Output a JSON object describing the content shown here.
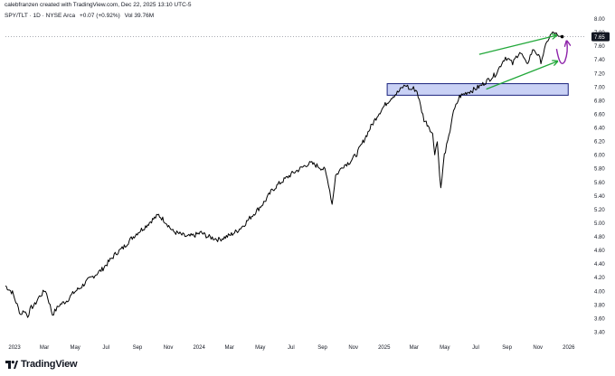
{
  "header": {
    "credit": "calebfranzen created with TradingView.com, Dec 22, 2025 13:10 UTC-5"
  },
  "legend": {
    "symbol": "SPY/TLT · 1D · NYSE Arca",
    "change": "+0.07 (+0.92%)",
    "volume": "Vol 39.76M"
  },
  "brand": {
    "name": "TradingView"
  },
  "colors": {
    "price_line": "#000000",
    "last_price_badge": "#131722",
    "channel_arrows": "#22a83a",
    "curve_arrow": "#8e24aa",
    "zone_fill": "#c9d1f5",
    "zone_border": "#1a237e"
  },
  "chart_data": {
    "type": "line",
    "title": "SPY/TLT",
    "xlabel": "",
    "ylabel": "",
    "x_ticks": [
      "2023",
      "Mar",
      "May",
      "Jul",
      "Sep",
      "Nov",
      "2024",
      "Mar",
      "May",
      "Jul",
      "Sep",
      "Nov",
      "2025",
      "Mar",
      "May",
      "Jul",
      "Sep",
      "Nov",
      "2026"
    ],
    "y_ticks": [
      "3.40",
      "3.60",
      "3.80",
      "4.00",
      "4.20",
      "4.40",
      "4.60",
      "4.80",
      "5.00",
      "5.20",
      "5.40",
      "5.60",
      "5.80",
      "6.00",
      "6.20",
      "6.40",
      "6.60",
      "6.80",
      "7.00",
      "7.20",
      "7.40",
      "7.60",
      "7.80",
      "8.00"
    ],
    "ylim": [
      3.34,
      8.04
    ],
    "last_value_label": "7.65",
    "series": [
      {
        "values": [
          [
            "2022-12-14",
            4.08
          ],
          [
            "2022-12-28",
            3.98
          ],
          [
            "2023-01-06",
            3.8
          ],
          [
            "2023-01-13",
            3.66
          ],
          [
            "2023-01-20",
            3.72
          ],
          [
            "2023-01-27",
            3.64
          ],
          [
            "2023-02-03",
            3.76
          ],
          [
            "2023-02-10",
            3.8
          ],
          [
            "2023-02-17",
            3.9
          ],
          [
            "2023-02-24",
            3.96
          ],
          [
            "2023-03-03",
            4.02
          ],
          [
            "2023-03-10",
            3.85
          ],
          [
            "2023-03-17",
            3.66
          ],
          [
            "2023-03-24",
            3.73
          ],
          [
            "2023-03-31",
            3.8
          ],
          [
            "2023-04-14",
            3.86
          ],
          [
            "2023-04-28",
            3.98
          ],
          [
            "2023-05-12",
            4.06
          ],
          [
            "2023-05-26",
            4.16
          ],
          [
            "2023-06-09",
            4.24
          ],
          [
            "2023-06-23",
            4.32
          ],
          [
            "2023-07-07",
            4.44
          ],
          [
            "2023-07-21",
            4.56
          ],
          [
            "2023-08-04",
            4.64
          ],
          [
            "2023-08-18",
            4.76
          ],
          [
            "2023-09-01",
            4.86
          ],
          [
            "2023-09-15",
            4.94
          ],
          [
            "2023-09-29",
            5.04
          ],
          [
            "2023-10-13",
            5.12
          ],
          [
            "2023-10-27",
            5.02
          ],
          [
            "2023-11-10",
            4.88
          ],
          [
            "2023-11-24",
            4.84
          ],
          [
            "2023-12-08",
            4.8
          ],
          [
            "2023-12-22",
            4.82
          ],
          [
            "2024-01-05",
            4.86
          ],
          [
            "2024-01-19",
            4.8
          ],
          [
            "2024-01-31",
            4.78
          ],
          [
            "2024-02-09",
            4.76
          ],
          [
            "2024-02-16",
            4.78
          ],
          [
            "2024-03-01",
            4.82
          ],
          [
            "2024-03-15",
            4.88
          ],
          [
            "2024-03-29",
            4.97
          ],
          [
            "2024-04-12",
            5.09
          ],
          [
            "2024-04-26",
            5.2
          ],
          [
            "2024-05-10",
            5.32
          ],
          [
            "2024-05-24",
            5.48
          ],
          [
            "2024-06-07",
            5.58
          ],
          [
            "2024-06-21",
            5.66
          ],
          [
            "2024-07-05",
            5.74
          ],
          [
            "2024-07-19",
            5.8
          ],
          [
            "2024-07-31",
            5.86
          ],
          [
            "2024-08-09",
            5.88
          ],
          [
            "2024-08-23",
            5.84
          ],
          [
            "2024-09-06",
            5.78
          ],
          [
            "2024-09-13",
            5.58
          ],
          [
            "2024-09-20",
            5.28
          ],
          [
            "2024-09-27",
            5.7
          ],
          [
            "2024-10-04",
            5.76
          ],
          [
            "2024-10-11",
            5.84
          ],
          [
            "2024-10-25",
            5.9
          ],
          [
            "2024-11-08",
            6.02
          ],
          [
            "2024-11-22",
            6.22
          ],
          [
            "2024-12-06",
            6.42
          ],
          [
            "2024-12-20",
            6.6
          ],
          [
            "2025-01-03",
            6.74
          ],
          [
            "2025-01-17",
            6.86
          ],
          [
            "2025-01-31",
            6.94
          ],
          [
            "2025-02-07",
            7.0
          ],
          [
            "2025-02-14",
            7.03
          ],
          [
            "2025-02-21",
            6.96
          ],
          [
            "2025-02-28",
            6.98
          ],
          [
            "2025-03-07",
            6.94
          ],
          [
            "2025-03-14",
            6.72
          ],
          [
            "2025-03-21",
            6.52
          ],
          [
            "2025-03-31",
            6.42
          ],
          [
            "2025-04-07",
            6.3
          ],
          [
            "2025-04-11",
            6.04
          ],
          [
            "2025-04-16",
            6.2
          ],
          [
            "2025-04-23",
            5.5
          ],
          [
            "2025-04-30",
            6.0
          ],
          [
            "2025-05-09",
            6.26
          ],
          [
            "2025-05-16",
            6.58
          ],
          [
            "2025-05-23",
            6.72
          ],
          [
            "2025-05-30",
            6.86
          ],
          [
            "2025-06-13",
            6.92
          ],
          [
            "2025-06-27",
            6.96
          ],
          [
            "2025-07-11",
            7.02
          ],
          [
            "2025-07-25",
            7.1
          ],
          [
            "2025-08-08",
            7.18
          ],
          [
            "2025-08-15",
            7.26
          ],
          [
            "2025-08-22",
            7.36
          ],
          [
            "2025-08-29",
            7.44
          ],
          [
            "2025-09-05",
            7.4
          ],
          [
            "2025-09-12",
            7.34
          ],
          [
            "2025-09-19",
            7.44
          ],
          [
            "2025-09-26",
            7.52
          ],
          [
            "2025-10-03",
            7.44
          ],
          [
            "2025-10-10",
            7.32
          ],
          [
            "2025-10-17",
            7.46
          ],
          [
            "2025-10-24",
            7.56
          ],
          [
            "2025-10-31",
            7.48
          ],
          [
            "2025-11-07",
            7.38
          ],
          [
            "2025-11-14",
            7.54
          ],
          [
            "2025-11-21",
            7.7
          ],
          [
            "2025-11-28",
            7.78
          ],
          [
            "2025-12-05",
            7.8
          ],
          [
            "2025-12-12",
            7.72
          ],
          [
            "2025-12-19",
            7.74
          ]
        ]
      }
    ],
    "annotations": {
      "support_zone": {
        "y_range": [
          6.88,
          7.05
        ],
        "x_range": [
          "2025-01-07",
          "2025-12-31"
        ]
      },
      "channel_upper": {
        "from": [
          "2025-07-08",
          7.48
        ],
        "to": [
          "2025-12-08",
          7.76
        ]
      },
      "channel_lower": {
        "from": [
          "2025-07-22",
          6.97
        ],
        "to": [
          "2025-12-10",
          7.38
        ]
      },
      "curve_arrow": "purple U-turn arrow pointing up near the last price"
    },
    "grid": false,
    "legend": "top-left"
  }
}
